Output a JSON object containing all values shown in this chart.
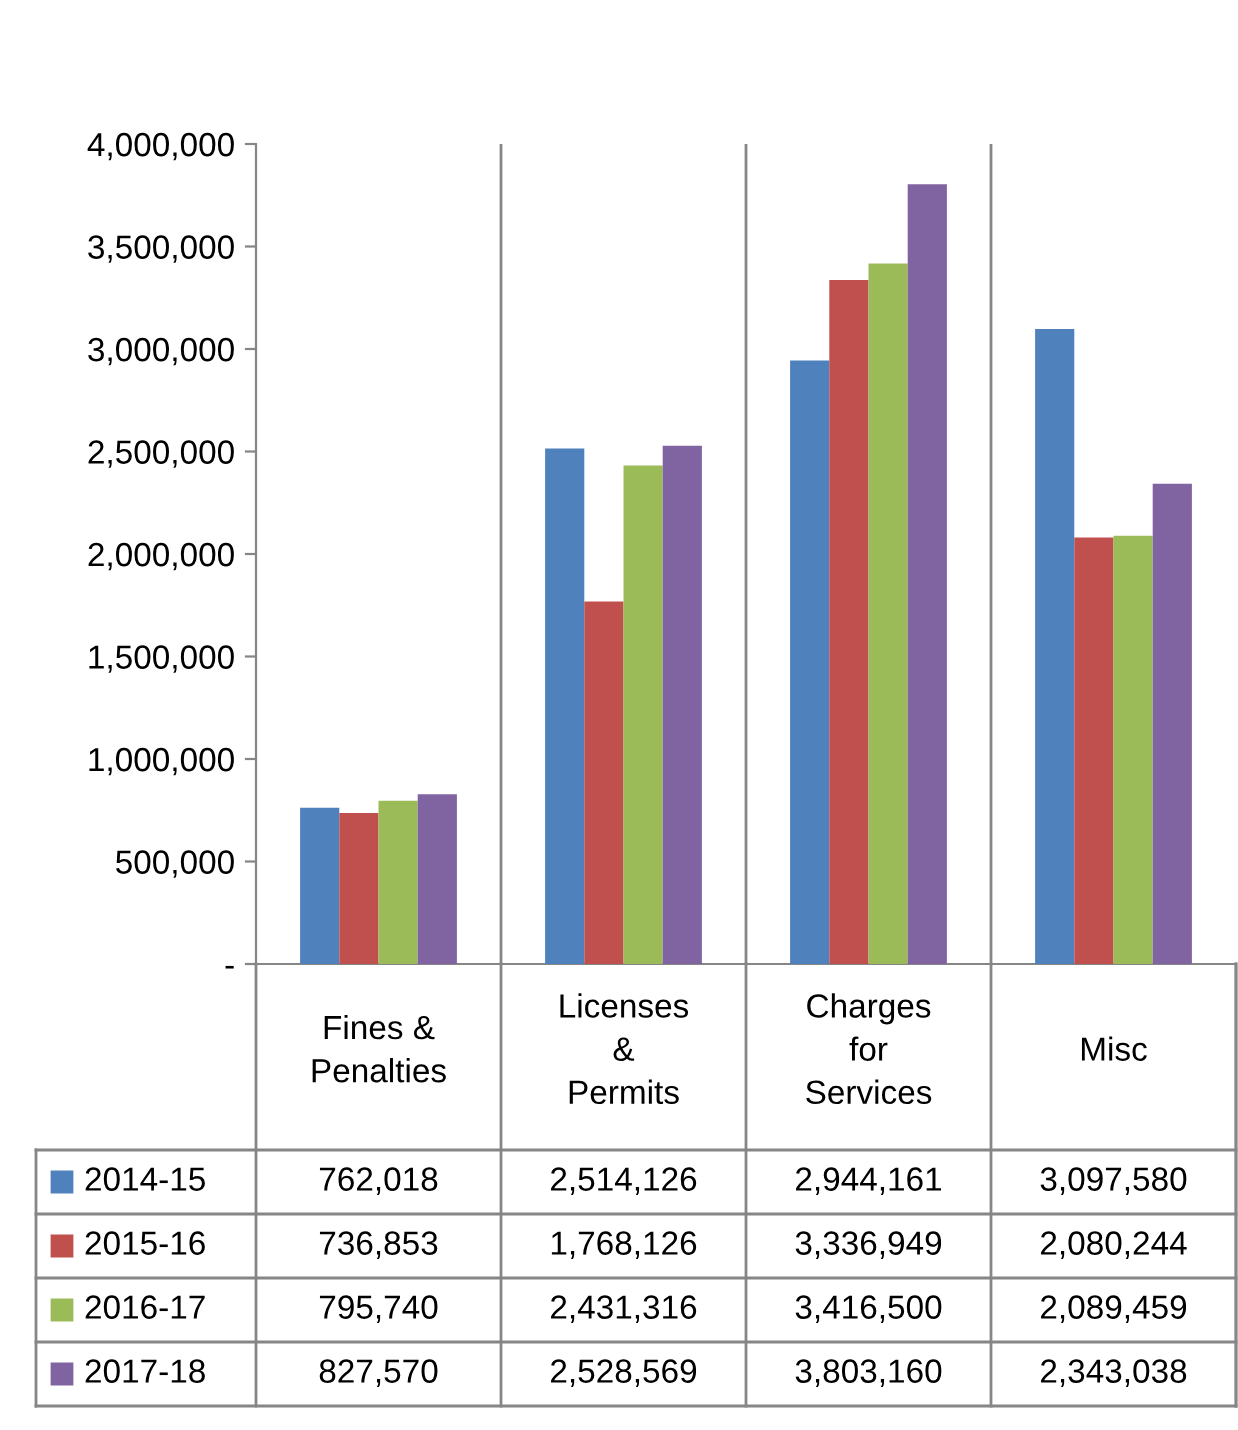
{
  "chart_data": {
    "type": "bar",
    "categories": [
      "Fines &\nPenalties",
      "Licenses\n&\nPermits",
      "Charges\nfor\nServices",
      "Misc"
    ],
    "series": [
      {
        "name": "2014-15",
        "color": "#4f81bd",
        "values": [
          762018,
          2514126,
          2944161,
          3097580
        ],
        "value_labels": [
          "762,018",
          "2,514,126",
          "2,944,161",
          "3,097,580"
        ]
      },
      {
        "name": "2015-16",
        "color": "#c0504d",
        "values": [
          736853,
          1768126,
          3336949,
          2080244
        ],
        "value_labels": [
          "736,853",
          "1,768,126",
          "3,336,949",
          "2,080,244"
        ]
      },
      {
        "name": "2016-17",
        "color": "#9bbb59",
        "values": [
          795740,
          2431316,
          3416500,
          2089459
        ],
        "value_labels": [
          "795,740",
          "2,431,316",
          "3,416,500",
          "2,089,459"
        ]
      },
      {
        "name": "2017-18",
        "color": "#8064a2",
        "values": [
          827570,
          2528569,
          3803160,
          2343038
        ],
        "value_labels": [
          "827,570",
          "2,528,569",
          "3,803,160",
          "2,343,038"
        ]
      }
    ],
    "ylim": [
      0,
      4000000
    ],
    "yticks": [
      {
        "value": 0,
        "label": "-"
      },
      {
        "value": 500000,
        "label": "500,000"
      },
      {
        "value": 1000000,
        "label": "1,000,000"
      },
      {
        "value": 1500000,
        "label": "1,500,000"
      },
      {
        "value": 2000000,
        "label": "2,000,000"
      },
      {
        "value": 2500000,
        "label": "2,500,000"
      },
      {
        "value": 3000000,
        "label": "3,000,000"
      },
      {
        "value": 3500000,
        "label": "3,500,000"
      },
      {
        "value": 4000000,
        "label": "4,000,000"
      }
    ],
    "grid": "x",
    "legend": "bottom left"
  }
}
